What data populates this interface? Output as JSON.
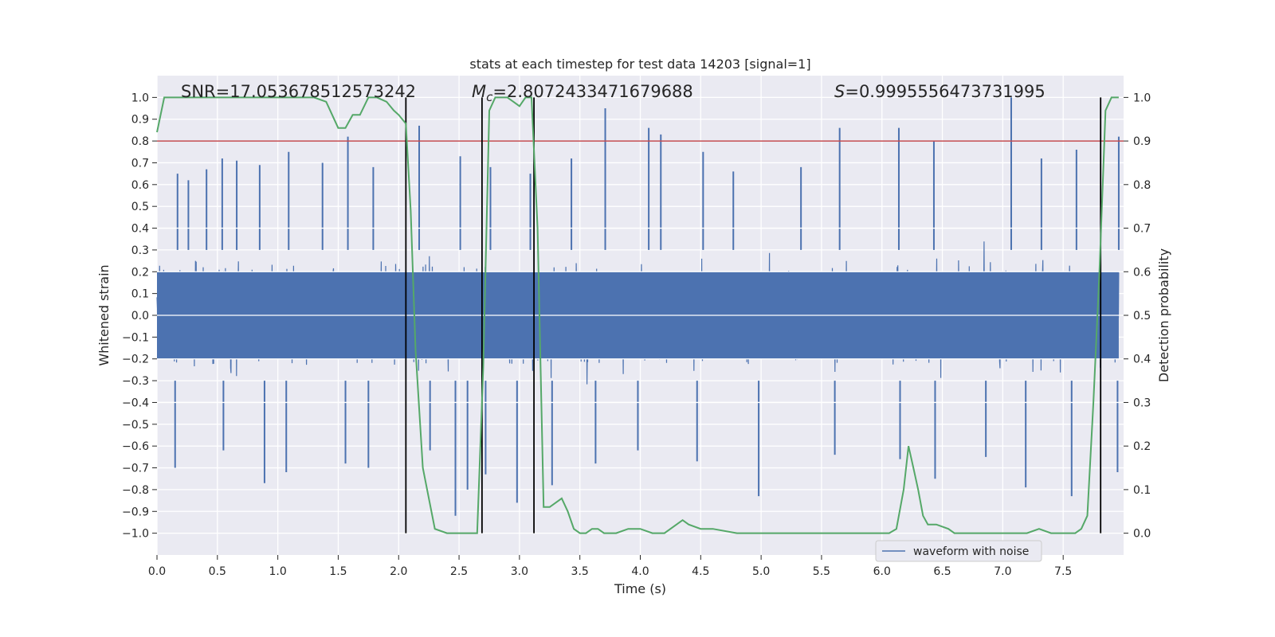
{
  "chart_data": {
    "type": "line",
    "title": "stats at each timestep for test data 14203 [signal=1]",
    "xlabel": "Time (s)",
    "ylabel": "Whitened strain",
    "y2label": "Detection probability",
    "xlim": [
      0.0,
      8.0
    ],
    "ylim": [
      -1.1,
      1.1
    ],
    "y2lim": [
      -0.05,
      1.05
    ],
    "xticks": [
      0.0,
      0.5,
      1.0,
      1.5,
      2.0,
      2.5,
      3.0,
      3.5,
      4.0,
      4.5,
      5.0,
      5.5,
      6.0,
      6.5,
      7.0,
      7.5
    ],
    "yticks": [
      -1.0,
      -0.9,
      -0.8,
      -0.7,
      -0.6,
      -0.5,
      -0.4,
      -0.3,
      -0.2,
      -0.1,
      0.0,
      0.1,
      0.2,
      0.3,
      0.4,
      0.5,
      0.6,
      0.7,
      0.8,
      0.9,
      1.0
    ],
    "y2ticks": [
      0.0,
      0.1,
      0.2,
      0.3,
      0.4,
      0.5,
      0.6,
      0.7,
      0.8,
      0.9,
      1.0
    ],
    "grid": true,
    "legend_placement": "bottom-right",
    "annotations": {
      "snr": "SNR=17.053678512573242",
      "mc_symbol": "M",
      "mc_sub": "c",
      "mc_value": "=2.8072433471679688",
      "s_symbol": "S",
      "s_value": "=0.9995556473731995"
    },
    "threshold": {
      "y": 0.8,
      "color": "#c44e52"
    },
    "vlines": [
      2.06,
      2.69,
      3.12,
      7.81
    ],
    "series": [
      {
        "name": "waveform with noise",
        "color": "#4c72b0",
        "axis": "left",
        "description_envelope": "noise",
        "peaks": [
          [
            0.17,
            0.65
          ],
          [
            0.26,
            0.62
          ],
          [
            0.41,
            0.67
          ],
          [
            0.54,
            0.72
          ],
          [
            0.66,
            0.71
          ],
          [
            0.85,
            0.69
          ],
          [
            1.09,
            0.75
          ],
          [
            1.37,
            0.7
          ],
          [
            1.58,
            0.82
          ],
          [
            1.79,
            0.68
          ],
          [
            2.17,
            0.87
          ],
          [
            2.51,
            0.73
          ],
          [
            2.76,
            0.68
          ],
          [
            3.09,
            0.65
          ],
          [
            3.43,
            0.72
          ],
          [
            3.71,
            0.95
          ],
          [
            4.07,
            0.86
          ],
          [
            4.17,
            0.83
          ],
          [
            4.52,
            0.75
          ],
          [
            4.77,
            0.66
          ],
          [
            5.33,
            0.68
          ],
          [
            5.65,
            0.86
          ],
          [
            6.14,
            0.86
          ],
          [
            6.43,
            0.8
          ],
          [
            7.07,
            1.0
          ],
          [
            7.32,
            0.72
          ],
          [
            7.61,
            0.76
          ],
          [
            7.96,
            0.82
          ]
        ],
        "troughs": [
          [
            0.15,
            -0.7
          ],
          [
            0.55,
            -0.62
          ],
          [
            0.89,
            -0.77
          ],
          [
            1.07,
            -0.72
          ],
          [
            1.56,
            -0.68
          ],
          [
            1.75,
            -0.7
          ],
          [
            2.26,
            -0.62
          ],
          [
            2.47,
            -0.92
          ],
          [
            2.57,
            -0.8
          ],
          [
            2.72,
            -0.73
          ],
          [
            2.98,
            -0.86
          ],
          [
            3.27,
            -0.78
          ],
          [
            3.63,
            -0.68
          ],
          [
            3.98,
            -0.62
          ],
          [
            4.47,
            -0.67
          ],
          [
            4.98,
            -0.83
          ],
          [
            5.61,
            -0.64
          ],
          [
            6.15,
            -0.66
          ],
          [
            6.44,
            -0.75
          ],
          [
            6.86,
            -0.65
          ],
          [
            7.19,
            -0.79
          ],
          [
            7.57,
            -0.83
          ],
          [
            7.95,
            -0.72
          ]
        ]
      },
      {
        "name": "",
        "color": "#55a868",
        "axis": "right",
        "x": [
          0.0,
          0.06,
          0.13,
          0.2,
          0.3,
          0.4,
          0.5,
          0.6,
          0.7,
          0.8,
          0.9,
          1.0,
          1.1,
          1.2,
          1.3,
          1.4,
          1.5,
          1.56,
          1.62,
          1.68,
          1.75,
          1.82,
          1.9,
          1.96,
          2.0,
          2.06,
          2.1,
          2.14,
          2.2,
          2.3,
          2.4,
          2.5,
          2.6,
          2.65,
          2.7,
          2.75,
          2.8,
          2.85,
          2.9,
          2.95,
          3.0,
          3.05,
          3.1,
          3.15,
          3.2,
          3.25,
          3.3,
          3.35,
          3.4,
          3.45,
          3.5,
          3.55,
          3.6,
          3.65,
          3.7,
          3.75,
          3.8,
          3.9,
          4.0,
          4.1,
          4.2,
          4.3,
          4.35,
          4.4,
          4.5,
          4.6,
          4.8,
          5.0,
          5.2,
          5.4,
          5.6,
          5.8,
          6.0,
          6.06,
          6.12,
          6.18,
          6.22,
          6.26,
          6.3,
          6.34,
          6.38,
          6.45,
          6.55,
          6.6,
          6.65,
          6.8,
          7.0,
          7.2,
          7.3,
          7.4,
          7.5,
          7.6,
          7.65,
          7.7,
          7.75,
          7.8,
          7.85,
          7.9,
          7.96
        ],
        "y": [
          0.92,
          1.0,
          1.0,
          1.0,
          1.0,
          1.0,
          1.0,
          1.0,
          1.0,
          1.0,
          1.0,
          1.0,
          1.0,
          1.0,
          1.0,
          0.99,
          0.93,
          0.93,
          0.96,
          0.96,
          1.0,
          1.0,
          0.99,
          0.97,
          0.96,
          0.94,
          0.74,
          0.42,
          0.15,
          0.01,
          0.0,
          0.0,
          0.0,
          0.0,
          0.38,
          0.97,
          1.0,
          1.0,
          1.0,
          0.99,
          0.98,
          1.0,
          1.0,
          0.7,
          0.06,
          0.06,
          0.07,
          0.08,
          0.05,
          0.01,
          0.0,
          0.0,
          0.01,
          0.01,
          0.0,
          0.0,
          0.0,
          0.01,
          0.01,
          0.0,
          0.0,
          0.02,
          0.03,
          0.02,
          0.01,
          0.01,
          0.0,
          0.0,
          0.0,
          0.0,
          0.0,
          0.0,
          0.0,
          0.0,
          0.01,
          0.1,
          0.2,
          0.15,
          0.1,
          0.04,
          0.02,
          0.02,
          0.01,
          0.0,
          0.0,
          0.0,
          0.0,
          0.0,
          0.01,
          0.0,
          0.0,
          0.0,
          0.01,
          0.04,
          0.3,
          0.6,
          0.97,
          1.0,
          1.0
        ]
      }
    ]
  }
}
